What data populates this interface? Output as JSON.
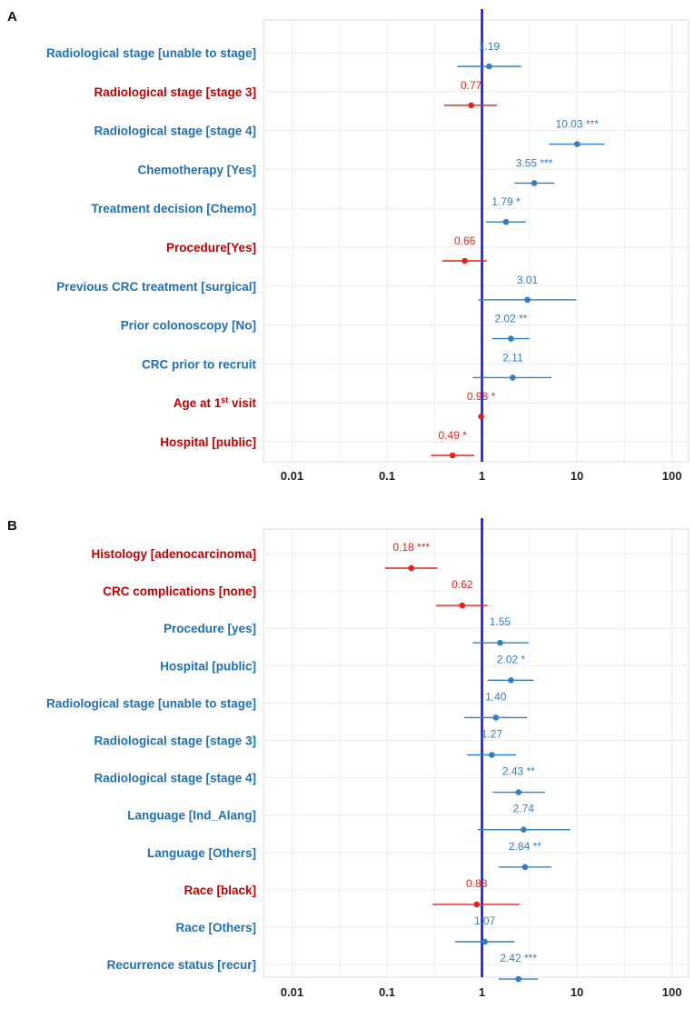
{
  "colors": {
    "blue": "#2f7fc1",
    "red": "#e2231a",
    "ref_line": "#1515e6",
    "label_blue": "#1f6fb6",
    "label_red": "#c00000",
    "grid": "#ececec",
    "frame": "#dddddd"
  },
  "chart_data": [
    {
      "panel": "A",
      "type": "scatter",
      "subtype": "forest-plot",
      "x_scale": "log10",
      "xlim": [
        0.005,
        150
      ],
      "x_ticks": [
        0.01,
        0.1,
        1,
        10,
        100
      ],
      "x_tick_labels": [
        "0.01",
        "0.1",
        "1",
        "10",
        "100"
      ],
      "reference_line": 1,
      "rows": [
        {
          "label": "Radiological stage [unable to stage]",
          "or": 1.19,
          "text": "1.19",
          "lo": 0.55,
          "hi": 2.6,
          "color": "blue"
        },
        {
          "label": "Radiological stage [stage 3]",
          "or": 0.77,
          "text": "0.77",
          "lo": 0.4,
          "hi": 1.45,
          "color": "red"
        },
        {
          "label": "Radiological stage [stage 4]",
          "or": 10.03,
          "text": "10.03 ***",
          "lo": 5.1,
          "hi": 19.5,
          "color": "blue"
        },
        {
          "label": "Chemotherapy [Yes]",
          "or": 3.55,
          "text": "3.55 ***",
          "lo": 2.2,
          "hi": 5.8,
          "color": "blue"
        },
        {
          "label": "Treatment decision [Chemo]",
          "or": 1.79,
          "text": "1.79 *",
          "lo": 1.1,
          "hi": 2.9,
          "color": "blue"
        },
        {
          "label": "Procedure[Yes]",
          "or": 0.66,
          "text": "0.66",
          "lo": 0.38,
          "hi": 1.12,
          "color": "red"
        },
        {
          "label": "Previous CRC treatment [surgical]",
          "or": 3.01,
          "text": "3.01",
          "lo": 0.92,
          "hi": 9.8,
          "color": "blue"
        },
        {
          "label": "Prior colonoscopy [No]",
          "or": 2.02,
          "text": "2.02 **",
          "lo": 1.28,
          "hi": 3.15,
          "color": "blue"
        },
        {
          "label": "CRC prior to recruit",
          "or": 2.11,
          "text": "2.11",
          "lo": 0.8,
          "hi": 5.4,
          "color": "blue"
        },
        {
          "label": "Age at 1st visit",
          "label_main": "Age at 1",
          "label_sup": "st",
          "label_tail": " visit",
          "or": 0.98,
          "text": "0.98 *",
          "lo": 0.965,
          "hi": 0.995,
          "color": "red"
        },
        {
          "label": "Hospital [public]",
          "or": 0.49,
          "text": "0.49 *",
          "lo": 0.29,
          "hi": 0.83,
          "color": "red"
        }
      ]
    },
    {
      "panel": "B",
      "type": "scatter",
      "subtype": "forest-plot",
      "x_scale": "log10",
      "xlim": [
        0.005,
        150
      ],
      "x_ticks": [
        0.01,
        0.1,
        1,
        10,
        100
      ],
      "x_tick_labels": [
        "0.01",
        "0.1",
        "1",
        "10",
        "100"
      ],
      "reference_line": 1,
      "rows": [
        {
          "label": "Histology [adenocarcinoma]",
          "or": 0.18,
          "text": "0.18 ***",
          "lo": 0.095,
          "hi": 0.34,
          "color": "red"
        },
        {
          "label": "CRC complications [none]",
          "or": 0.62,
          "text": "0.62",
          "lo": 0.33,
          "hi": 1.15,
          "color": "red"
        },
        {
          "label": "Procedure [yes]",
          "or": 1.55,
          "text": "1.55",
          "lo": 0.8,
          "hi": 3.1,
          "color": "blue"
        },
        {
          "label": "Hospital [public]",
          "or": 2.02,
          "text": "2.02 *",
          "lo": 1.15,
          "hi": 3.5,
          "color": "blue"
        },
        {
          "label": "Radiological stage [unable to stage]",
          "or": 1.4,
          "text": "1.40",
          "lo": 0.65,
          "hi": 3.0,
          "color": "blue"
        },
        {
          "label": "Radiological stage [stage 3]",
          "or": 1.27,
          "text": "1.27",
          "lo": 0.7,
          "hi": 2.3,
          "color": "blue"
        },
        {
          "label": "Radiological stage [stage 4]",
          "or": 2.43,
          "text": "2.43 **",
          "lo": 1.3,
          "hi": 4.6,
          "color": "blue"
        },
        {
          "label": "Language [Ind_Alang]",
          "or": 2.74,
          "text": "2.74",
          "lo": 0.9,
          "hi": 8.5,
          "color": "blue"
        },
        {
          "label": "Language [Others]",
          "or": 2.84,
          "text": "2.84 **",
          "lo": 1.5,
          "hi": 5.4,
          "color": "blue"
        },
        {
          "label": "Race [black]",
          "or": 0.88,
          "text": "0.88",
          "lo": 0.3,
          "hi": 2.5,
          "color": "red"
        },
        {
          "label": "Race [Others]",
          "or": 1.07,
          "text": "1.07",
          "lo": 0.52,
          "hi": 2.2,
          "color": "blue"
        },
        {
          "label": "Recurrence status [recur]",
          "or": 2.42,
          "text": "2.42 ***",
          "lo": 1.5,
          "hi": 3.9,
          "color": "blue"
        }
      ]
    }
  ]
}
